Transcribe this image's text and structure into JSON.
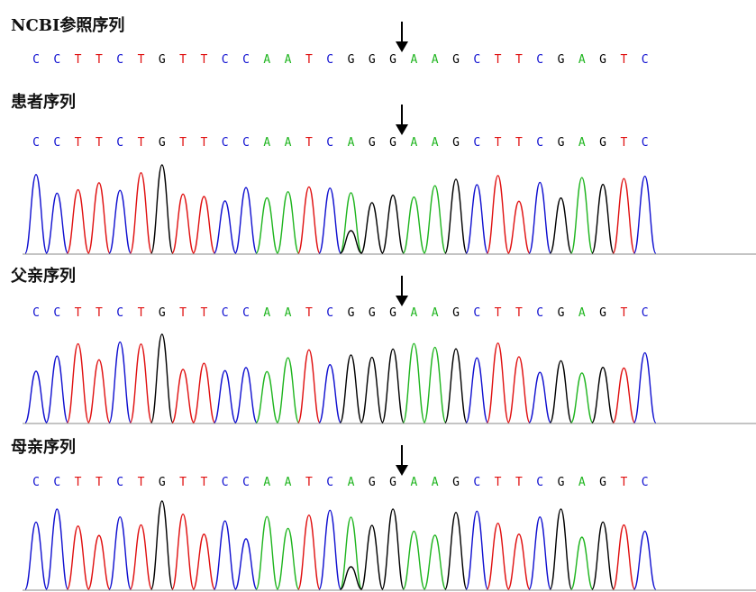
{
  "colors": {
    "A": "#1fb51f",
    "C": "#1010d0",
    "G": "#000000",
    "T": "#e01010"
  },
  "panels": [
    {
      "title": "NCBI参照序列",
      "sequence": [
        "C",
        "C",
        "T",
        "T",
        "C",
        "T",
        "G",
        "T",
        "T",
        "C",
        "C",
        "A",
        "A",
        "T",
        "C",
        "G",
        "G",
        "G",
        "A",
        "A",
        "G",
        "C",
        "T",
        "T",
        "C",
        "G",
        "A",
        "G",
        "T",
        "C"
      ],
      "show_trace": false
    },
    {
      "title": "患者序列",
      "sequence": [
        "C",
        "C",
        "T",
        "T",
        "C",
        "T",
        "G",
        "T",
        "T",
        "C",
        "C",
        "A",
        "A",
        "T",
        "C",
        "A",
        "G",
        "G",
        "A",
        "A",
        "G",
        "C",
        "T",
        "T",
        "C",
        "G",
        "A",
        "G",
        "T",
        "C"
      ],
      "show_trace": true
    },
    {
      "title": "父亲序列",
      "sequence": [
        "C",
        "C",
        "T",
        "T",
        "C",
        "T",
        "G",
        "T",
        "T",
        "C",
        "C",
        "A",
        "A",
        "T",
        "C",
        "G",
        "G",
        "G",
        "A",
        "A",
        "G",
        "C",
        "T",
        "T",
        "C",
        "G",
        "A",
        "G",
        "T",
        "C"
      ],
      "show_trace": true
    },
    {
      "title": "母亲序列",
      "sequence": [
        "C",
        "C",
        "T",
        "T",
        "C",
        "T",
        "G",
        "T",
        "T",
        "C",
        "C",
        "A",
        "A",
        "T",
        "C",
        "A",
        "G",
        "G",
        "A",
        "A",
        "G",
        "C",
        "T",
        "T",
        "C",
        "G",
        "A",
        "G",
        "T",
        "C"
      ],
      "show_trace": true
    }
  ],
  "variant_index": 15
}
